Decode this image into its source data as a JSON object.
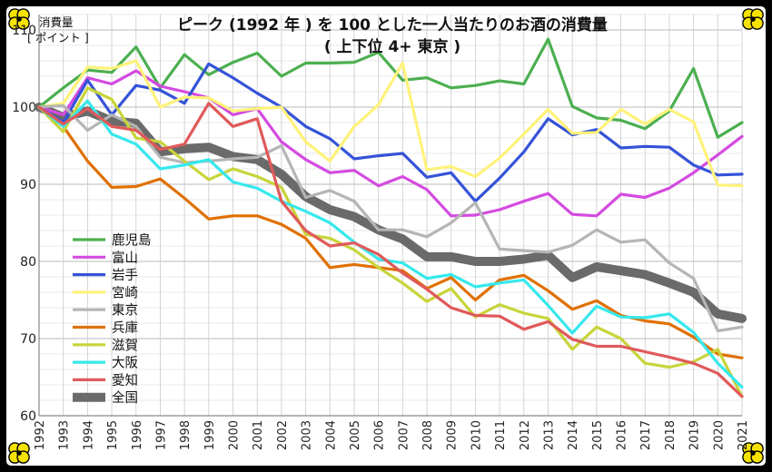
{
  "chart_data": {
    "type": "line",
    "title": "ピーク (1992 年 ) を 100 とした一人当たりのお酒の消費量",
    "subtitle": "( 上下位 4+ 東京 )",
    "ylabel_line1": "消費量",
    "ylabel_line2": "[ ポイント ]",
    "xlabel": "",
    "ylim": [
      60,
      112
    ],
    "yticks": [
      60,
      70,
      80,
      90,
      100,
      110
    ],
    "grid": true,
    "legend_position": "left",
    "x": [
      "1992",
      "1993",
      "1994",
      "1995",
      "1996",
      "1997",
      "1998",
      "1999",
      "2000",
      "2001",
      "2002",
      "2003",
      "2004",
      "2005",
      "2006",
      "2007",
      "2008",
      "2009",
      "2010",
      "2011",
      "2012",
      "2013",
      "2014",
      "2015",
      "2016",
      "2017",
      "2018",
      "2019",
      "2020",
      "2021"
    ],
    "series": [
      {
        "name": "鹿児島",
        "color": "#4caf50",
        "values": [
          100,
          102.5,
          104.8,
          104.5,
          107.8,
          102.5,
          106.8,
          104.2,
          105.8,
          107,
          104,
          105.7,
          105.7,
          105.8,
          107.1,
          103.5,
          103.8,
          102.5,
          102.8,
          103.4,
          103,
          108.8,
          100.1,
          98.6,
          98.3,
          97.2,
          99.5,
          105,
          96.1,
          98
        ]
      },
      {
        "name": "富山",
        "color": "#d44ae0",
        "values": [
          100,
          99,
          103.8,
          103,
          104.7,
          102.7,
          102,
          101.2,
          99,
          99.8,
          95.5,
          93.2,
          91.5,
          91.8,
          89.8,
          91,
          89.3,
          85.9,
          86,
          86.7,
          87.8,
          88.8,
          86.1,
          85.9,
          88.7,
          88.3,
          89.5,
          91.5,
          93.8,
          96.2
        ]
      },
      {
        "name": "岩手",
        "color": "#3553d8",
        "values": [
          100,
          98,
          103.5,
          99,
          102.8,
          102.2,
          100.5,
          105.6,
          103.8,
          101.8,
          100,
          97.5,
          95.9,
          93.3,
          93.7,
          94,
          90.9,
          91.5,
          87.8,
          90.8,
          94.2,
          98.5,
          96.4,
          97.1,
          94.7,
          94.9,
          94.8,
          92.5,
          91.2,
          91.3
        ]
      },
      {
        "name": "宮崎",
        "color": "#fff27a",
        "values": [
          100,
          100.5,
          105.2,
          105,
          106,
          100,
          101.3,
          101.2,
          99.5,
          99.8,
          100,
          95.5,
          93,
          97.5,
          100.3,
          105.7,
          91.9,
          92.3,
          91,
          93.4,
          96.5,
          99.7,
          96.6,
          96.7,
          99.7,
          97.8,
          99.7,
          98.1,
          89.9,
          89.8
        ]
      },
      {
        "name": "東京",
        "color": "#b5b5b5",
        "values": [
          100,
          100.2,
          97,
          99,
          97.5,
          93.5,
          92.8,
          93,
          93.3,
          93.5,
          95,
          88.3,
          89.2,
          87.8,
          84.1,
          84.1,
          83.2,
          85,
          87.6,
          81.6,
          81.4,
          81.2,
          82.1,
          84.1,
          82.5,
          82.8,
          79.8,
          77.8,
          71,
          71.5
        ]
      },
      {
        "name": "兵庫",
        "color": "#e07000",
        "values": [
          100,
          97.5,
          93,
          89.6,
          89.7,
          90.7,
          88.2,
          85.5,
          85.9,
          85.9,
          84.8,
          83,
          79.2,
          79.6,
          79.2,
          78.8,
          76.5,
          77.9,
          75,
          77.6,
          78.2,
          76.2,
          73.8,
          74.9,
          73,
          72.3,
          71.9,
          70.2,
          68,
          67.5
        ]
      },
      {
        "name": "滋賀",
        "color": "#c8d43a",
        "values": [
          100,
          96.8,
          102.5,
          101,
          96,
          95.5,
          93,
          90.6,
          92,
          91,
          89.6,
          83.5,
          83,
          81.5,
          79.2,
          77.2,
          74.8,
          76.5,
          72.8,
          74.4,
          73.3,
          72.6,
          68.6,
          71.5,
          70,
          66.8,
          66.3,
          67,
          68.6,
          62.5
        ]
      },
      {
        "name": "大阪",
        "color": "#36e8ec",
        "values": [
          100,
          97.5,
          100.8,
          96.5,
          95.2,
          92,
          92.5,
          93.2,
          90.3,
          89.5,
          87.8,
          86.5,
          85,
          82.5,
          80.3,
          79.8,
          77.8,
          78.3,
          76.7,
          77.2,
          77.6,
          74.3,
          70.7,
          74.2,
          72.8,
          72.7,
          73.2,
          70.8,
          66.8,
          63.7
        ]
      },
      {
        "name": "愛知",
        "color": "#e0595a",
        "values": [
          100,
          97.8,
          99.8,
          97.5,
          97,
          94.5,
          95.2,
          100.5,
          97.5,
          98.5,
          87.8,
          84,
          82,
          82.4,
          80.9,
          78.5,
          76.4,
          74,
          73,
          72.9,
          71.2,
          72.2,
          69.9,
          69,
          69,
          68.3,
          67.6,
          66.8,
          65.5,
          62.5
        ]
      },
      {
        "name": "全国",
        "color": "#6a6a6a",
        "values": [
          100,
          98.7,
          99.5,
          98.2,
          97.9,
          94.2,
          94.6,
          94.8,
          93.6,
          93.2,
          91.3,
          88.4,
          86.7,
          85.8,
          84.1,
          82.9,
          80.6,
          80.6,
          80,
          80,
          80.3,
          80.8,
          77.9,
          79.3,
          78.8,
          78.3,
          77.2,
          76,
          73.2,
          72.6
        ]
      }
    ]
  }
}
